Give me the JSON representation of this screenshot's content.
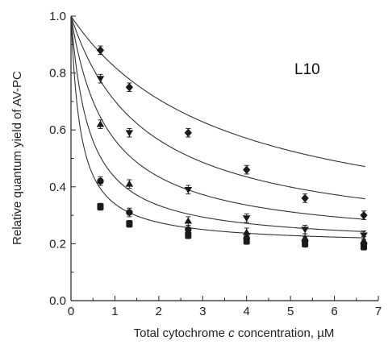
{
  "chart_data": {
    "type": "scatter",
    "panel_label": "L10",
    "xlabel_parts": [
      "Total cytochrome ",
      "c",
      " concentration, µM"
    ],
    "ylabel": "Relative quantum yield of AV-PC",
    "xlim": [
      0,
      7
    ],
    "ylim": [
      0,
      1.0
    ],
    "x_ticks": [
      0,
      1,
      2,
      3,
      4,
      5,
      6,
      7
    ],
    "x_tick_labels": [
      "0",
      "1",
      "2",
      "3",
      "4",
      "5",
      "6",
      "7"
    ],
    "y_ticks": [
      0,
      0.2,
      0.4,
      0.6,
      0.8,
      1.0
    ],
    "y_tick_labels": [
      "0.0",
      "0.2",
      "0.4",
      "0.6",
      "0.8",
      "1.0"
    ],
    "grid": false,
    "legend": "none",
    "series": [
      {
        "marker": "diamond",
        "x": [
          0,
          0.67,
          1.33,
          2.67,
          4.0,
          5.33,
          6.67
        ],
        "y": [
          1.0,
          0.88,
          0.75,
          0.59,
          0.46,
          0.36,
          0.3
        ],
        "err": [
          0,
          0.015,
          0.015,
          0.015,
          0.015,
          0.015,
          0.015
        ],
        "fit": {
          "a": 0.195,
          "K": 3.5
        }
      },
      {
        "marker": "triangle-down",
        "x": [
          0,
          0.67,
          1.33,
          2.67,
          4.0,
          5.33,
          6.67
        ],
        "y": [
          1.0,
          0.78,
          0.59,
          0.39,
          0.29,
          0.25,
          0.23
        ],
        "err": [
          0,
          0.015,
          0.015,
          0.015,
          0.015,
          0.015,
          0.015
        ],
        "fit": {
          "a": 0.195,
          "K": 1.7
        }
      },
      {
        "marker": "triangle-up",
        "x": [
          0,
          0.67,
          1.33,
          2.67,
          4.0,
          5.33,
          6.67
        ],
        "y": [
          1.0,
          0.62,
          0.41,
          0.28,
          0.24,
          0.22,
          0.21
        ],
        "err": [
          0,
          0.015,
          0.015,
          0.015,
          0.015,
          0.015,
          0.015
        ],
        "fit": {
          "a": 0.195,
          "K": 0.85
        }
      },
      {
        "marker": "circle",
        "x": [
          0,
          0.67,
          1.33,
          2.67,
          4.0,
          5.33,
          6.67
        ],
        "y": [
          1.0,
          0.42,
          0.31,
          0.25,
          0.22,
          0.21,
          0.2
        ],
        "err": [
          0,
          0.015,
          0.015,
          0.015,
          0.015,
          0.015,
          0.015
        ],
        "fit": {
          "a": 0.195,
          "K": 0.42
        }
      },
      {
        "marker": "square",
        "x": [
          0,
          0.67,
          1.33,
          2.67,
          4.0,
          5.33,
          6.67
        ],
        "y": [
          1.0,
          0.33,
          0.27,
          0.23,
          0.21,
          0.2,
          0.19
        ],
        "err": [
          0,
          0.012,
          0.012,
          0.012,
          0.012,
          0.012,
          0.012
        ],
        "fit": {
          "a": 0.195,
          "K": 0.22
        }
      }
    ]
  }
}
